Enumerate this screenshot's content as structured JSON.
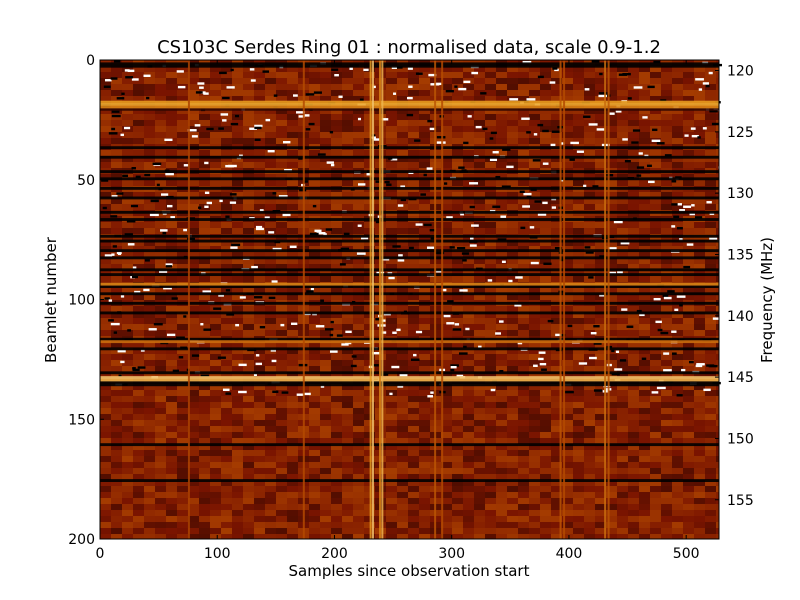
{
  "chart_data": {
    "type": "heatmap",
    "title": "CS103C Serdes Ring 01 : normalised data, scale 0.9-1.2",
    "xlabel": "Samples since observation start",
    "ylabel": "Beamlet number",
    "y2label": "Frequency (MHz)",
    "xlim": [
      0,
      528
    ],
    "ylim": [
      0,
      200
    ],
    "y_inverted": true,
    "y2lim": [
      119.14,
      158.2
    ],
    "x_ticks": [
      0,
      100,
      200,
      300,
      400,
      500
    ],
    "y_ticks": [
      0,
      50,
      100,
      150,
      200
    ],
    "y2_ticks": [
      120,
      125,
      130,
      135,
      140,
      145,
      150,
      155
    ],
    "color_scale": {
      "min": 0.9,
      "max": 1.2,
      "colormap": "afmhot",
      "colors": [
        "#000000",
        "#7a1400",
        "#b44a00",
        "#e8a020",
        "#ffffff"
      ]
    },
    "base_level": 0.99,
    "dark_rows": [
      {
        "beamlet": 1,
        "value": 0.86
      },
      {
        "beamlet": 2,
        "value": 0.88
      },
      {
        "beamlet": 20,
        "value": 0.93
      },
      {
        "beamlet": 36,
        "value": 0.9
      },
      {
        "beamlet": 40,
        "value": 0.88
      },
      {
        "beamlet": 46,
        "value": 0.86
      },
      {
        "beamlet": 49,
        "value": 0.87
      },
      {
        "beamlet": 53,
        "value": 0.88
      },
      {
        "beamlet": 57,
        "value": 0.88
      },
      {
        "beamlet": 63,
        "value": 0.88
      },
      {
        "beamlet": 66,
        "value": 0.88
      },
      {
        "beamlet": 73,
        "value": 0.86
      },
      {
        "beamlet": 75,
        "value": 0.87
      },
      {
        "beamlet": 79,
        "value": 0.86
      },
      {
        "beamlet": 82,
        "value": 0.86
      },
      {
        "beamlet": 87,
        "value": 0.86
      },
      {
        "beamlet": 89,
        "value": 0.86
      },
      {
        "beamlet": 94,
        "value": 0.85
      },
      {
        "beamlet": 97,
        "value": 0.86
      },
      {
        "beamlet": 101,
        "value": 0.86
      },
      {
        "beamlet": 105,
        "value": 0.9
      },
      {
        "beamlet": 116,
        "value": 0.88
      },
      {
        "beamlet": 120,
        "value": 0.86
      },
      {
        "beamlet": 130,
        "value": 0.86
      },
      {
        "beamlet": 134,
        "value": 0.86
      },
      {
        "beamlet": 135,
        "value": 0.87
      },
      {
        "beamlet": 160,
        "value": 0.88
      },
      {
        "beamlet": 175,
        "value": 0.86
      }
    ],
    "bright_rows": [
      {
        "beamlet": 17,
        "value": 1.12
      },
      {
        "beamlet": 18,
        "value": 1.13
      },
      {
        "beamlet": 19,
        "value": 1.1
      },
      {
        "beamlet": 93,
        "value": 1.1
      },
      {
        "beamlet": 117,
        "value": 1.08
      },
      {
        "beamlet": 132,
        "value": 1.15
      },
      {
        "beamlet": 133,
        "value": 1.14
      }
    ],
    "bright_columns": [
      {
        "sample": 75,
        "value": 1.04
      },
      {
        "sample": 173,
        "value": 1.05
      },
      {
        "sample": 230,
        "value": 1.12
      },
      {
        "sample": 232,
        "value": 1.15
      },
      {
        "sample": 238,
        "value": 1.1
      },
      {
        "sample": 240,
        "value": 1.14
      },
      {
        "sample": 285,
        "value": 1.06
      },
      {
        "sample": 291,
        "value": 1.05
      },
      {
        "sample": 392,
        "value": 1.06
      },
      {
        "sample": 395,
        "value": 1.05
      },
      {
        "sample": 430,
        "value": 1.08
      },
      {
        "sample": 433,
        "value": 1.06
      }
    ]
  }
}
